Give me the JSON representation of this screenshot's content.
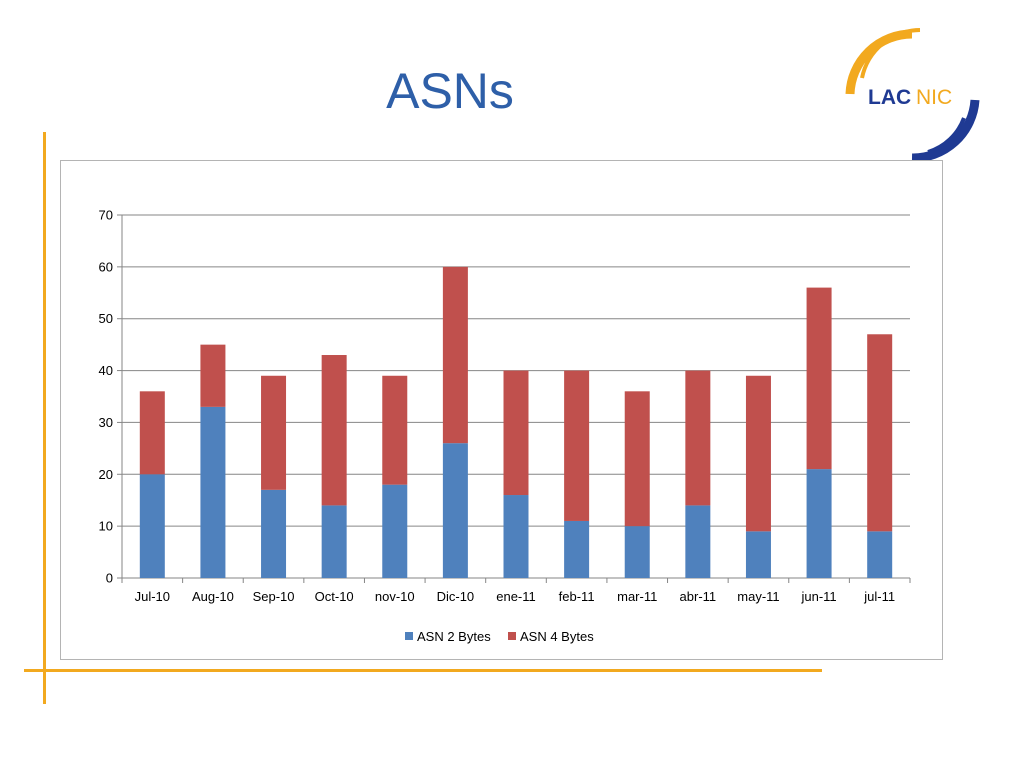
{
  "slide": {
    "title": "ASNs",
    "logo_text_a": "LAC",
    "logo_text_b": "NIC"
  },
  "colors": {
    "title": "#2e5fa8",
    "series_2bytes": "#4f81bd",
    "series_4bytes": "#c0504d",
    "accent": "#f2a91f",
    "logo_blue": "#1f3a93",
    "logo_orange": "#f2a91f"
  },
  "chart_data": {
    "type": "bar",
    "stacked": true,
    "categories": [
      "Jul-10",
      "Aug-10",
      "Sep-10",
      "Oct-10",
      "nov-10",
      "Dic-10",
      "ene-11",
      "feb-11",
      "mar-11",
      "abr-11",
      "may-11",
      "jun-11",
      "jul-11"
    ],
    "series": [
      {
        "name": "ASN 2 Bytes",
        "values": [
          20,
          33,
          17,
          14,
          18,
          26,
          16,
          11,
          10,
          14,
          9,
          21,
          9
        ]
      },
      {
        "name": "ASN 4 Bytes",
        "values": [
          16,
          12,
          22,
          29,
          21,
          34,
          24,
          29,
          26,
          26,
          30,
          35,
          38
        ]
      }
    ],
    "title": "",
    "xlabel": "",
    "ylabel": "",
    "ylim": [
      0,
      70
    ],
    "yticks": [
      0,
      10,
      20,
      30,
      40,
      50,
      60,
      70
    ],
    "grid": true,
    "legend": "bottom"
  }
}
